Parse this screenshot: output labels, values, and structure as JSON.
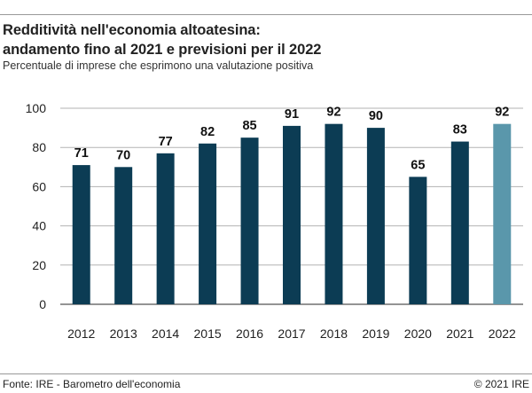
{
  "header": {
    "title_line1": "Redditività nell'economia altoatesina:",
    "title_line2": "andamento fino al 2021 e previsioni per il 2022",
    "subtitle": "Percentuale di imprese che esprimono una valutazione positiva"
  },
  "footer": {
    "source": "Fonte: IRE - Barometro dell'economia",
    "copyright": "© 2021 IRE"
  },
  "colors": {
    "actual": "#0c3c54",
    "forecast": "#5a97ab"
  },
  "chart_data": {
    "type": "bar",
    "categories": [
      "2012",
      "2013",
      "2014",
      "2015",
      "2016",
      "2017",
      "2018",
      "2019",
      "2020",
      "2021",
      "2022"
    ],
    "values": [
      71,
      70,
      77,
      82,
      85,
      91,
      92,
      90,
      65,
      83,
      92
    ],
    "forecast_categories": [
      "2022"
    ],
    "title": "Redditività nell'economia altoatesina: andamento fino al 2021 e previsioni per il 2022",
    "subtitle": "Percentuale di imprese che esprimono una valutazione positiva",
    "xlabel": "",
    "ylabel": "",
    "ylim": [
      0,
      100
    ],
    "yticks": [
      0,
      20,
      40,
      60,
      80,
      100
    ],
    "grid": true,
    "legend": "none"
  }
}
